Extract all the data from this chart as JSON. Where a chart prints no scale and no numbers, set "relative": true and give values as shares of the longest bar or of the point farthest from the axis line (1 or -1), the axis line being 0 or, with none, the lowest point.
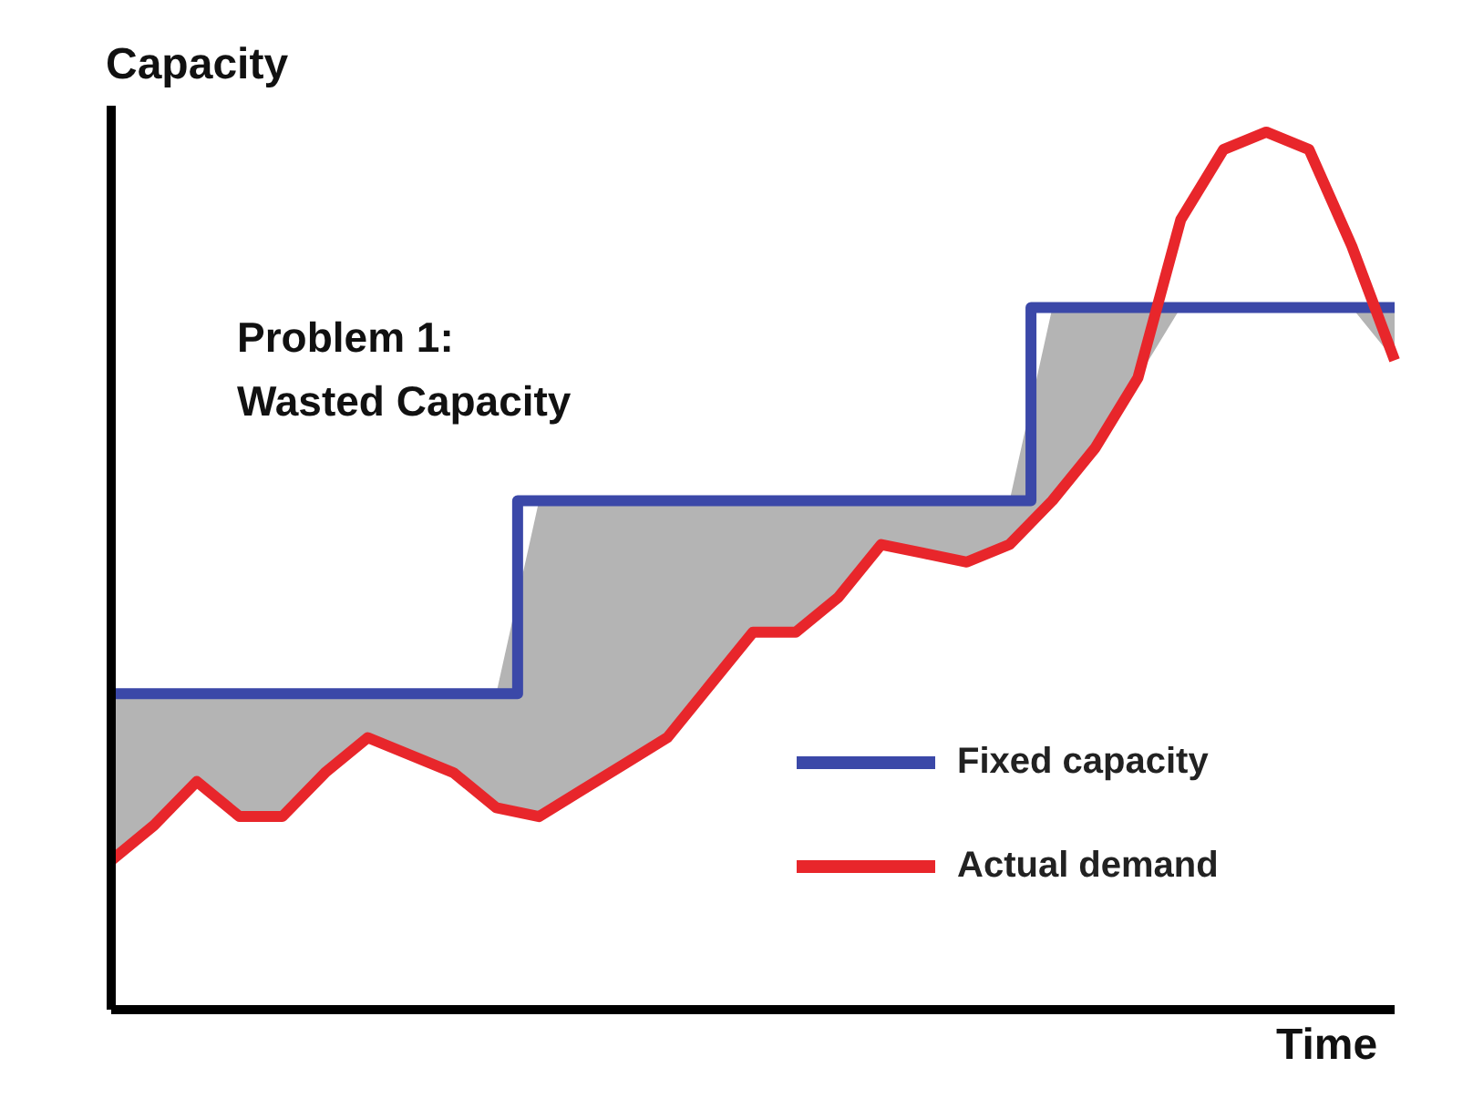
{
  "chart_data": {
    "type": "line",
    "relative": true,
    "xlabel": "Time",
    "ylabel": "Capacity",
    "annotations": [
      "Problem 1:\nWasted Capacity"
    ],
    "legend": "bottom right",
    "categories": [
      null,
      null,
      null,
      null,
      null,
      null,
      null,
      null,
      null,
      null,
      null,
      null,
      null,
      null,
      null,
      null,
      null,
      null,
      null,
      null,
      null,
      null,
      null,
      null,
      null,
      null,
      null,
      null,
      null,
      null,
      null
    ],
    "series": [
      {
        "type": "step",
        "name": "Fixed capacity",
        "color": "#3b48a8",
        "values": [
          0.36,
          0.36,
          0.36,
          0.36,
          0.36,
          0.36,
          0.36,
          0.36,
          0.36,
          0.36,
          0.58,
          0.58,
          0.58,
          0.58,
          0.58,
          0.58,
          0.58,
          0.58,
          0.58,
          0.58,
          0.58,
          0.58,
          0.8,
          0.8,
          0.8,
          0.8,
          0.8,
          0.8,
          0.8,
          0.8,
          0.8
        ],
        "lower": [
          0.17,
          0.21,
          0.26,
          0.22,
          0.22,
          0.27,
          0.31,
          0.29,
          0.27,
          0.23,
          0.22,
          0.25,
          0.28,
          0.31,
          0.37,
          0.43,
          0.43,
          0.47,
          0.53,
          0.52,
          0.51,
          0.53,
          0.58,
          0.64,
          0.72,
          0.8,
          0.8,
          0.8,
          0.8,
          0.8,
          0.74
        ],
        "upper": [
          0.36,
          0.36,
          0.36,
          0.36,
          0.36,
          0.36,
          0.36,
          0.36,
          0.36,
          0.36,
          0.58,
          0.58,
          0.58,
          0.58,
          0.58,
          0.58,
          0.58,
          0.58,
          0.58,
          0.58,
          0.58,
          0.58,
          0.8,
          0.8,
          0.8,
          0.8,
          0.8,
          0.8,
          0.8,
          0.8,
          0.8
        ]
      },
      {
        "type": "line",
        "name": "Actual demand",
        "color": "#e8262b",
        "values": [
          0.17,
          0.21,
          0.26,
          0.22,
          0.22,
          0.27,
          0.31,
          0.29,
          0.27,
          0.23,
          0.22,
          0.25,
          0.28,
          0.31,
          0.37,
          0.43,
          0.43,
          0.47,
          0.53,
          0.52,
          0.51,
          0.53,
          0.58,
          0.64,
          0.72,
          0.9,
          0.98,
          1,
          0.98,
          0.87,
          0.74
        ]
      }
    ]
  }
}
